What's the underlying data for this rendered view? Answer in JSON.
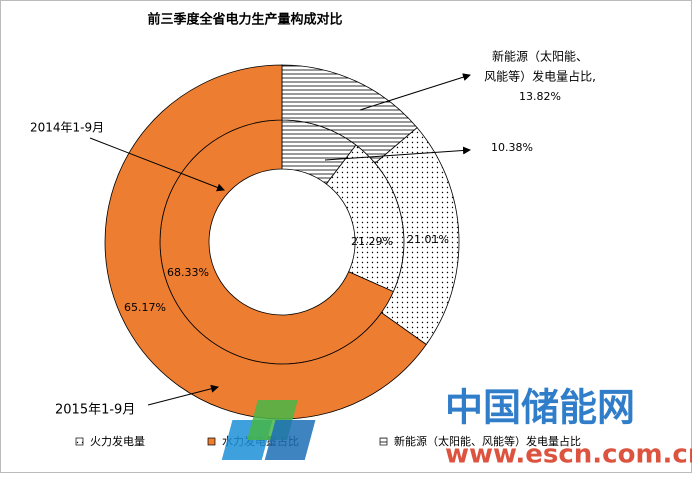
{
  "chart_data": {
    "type": "donut",
    "title": "前三季度全省电力生产量构成对比",
    "categories": [
      "火力发电量",
      "水力发电量占比",
      "新能源（太阳能、风能等）发电量占比"
    ],
    "colors": [
      "#ffffff",
      "#ED7D31",
      "#ffffff"
    ],
    "patterns": [
      "dots",
      "solid",
      "horizontal-lines"
    ],
    "series": [
      {
        "name": "2014年1-9月",
        "values": [
          21.29,
          68.33,
          10.38
        ],
        "value_labels": [
          "21.29%",
          "68.33%",
          "10.38%"
        ]
      },
      {
        "name": "2015年1-9月",
        "values": [
          21.01,
          65.17,
          13.82
        ],
        "value_labels": [
          "21.01%",
          "65.17%",
          "13.82%"
        ]
      }
    ],
    "annotation": [
      "新能源（太阳能、",
      "风能等）发电量占比,"
    ],
    "legend": "bottom"
  },
  "watermark": {
    "title": "中国储能网",
    "url": "www.escn.com.cn"
  }
}
